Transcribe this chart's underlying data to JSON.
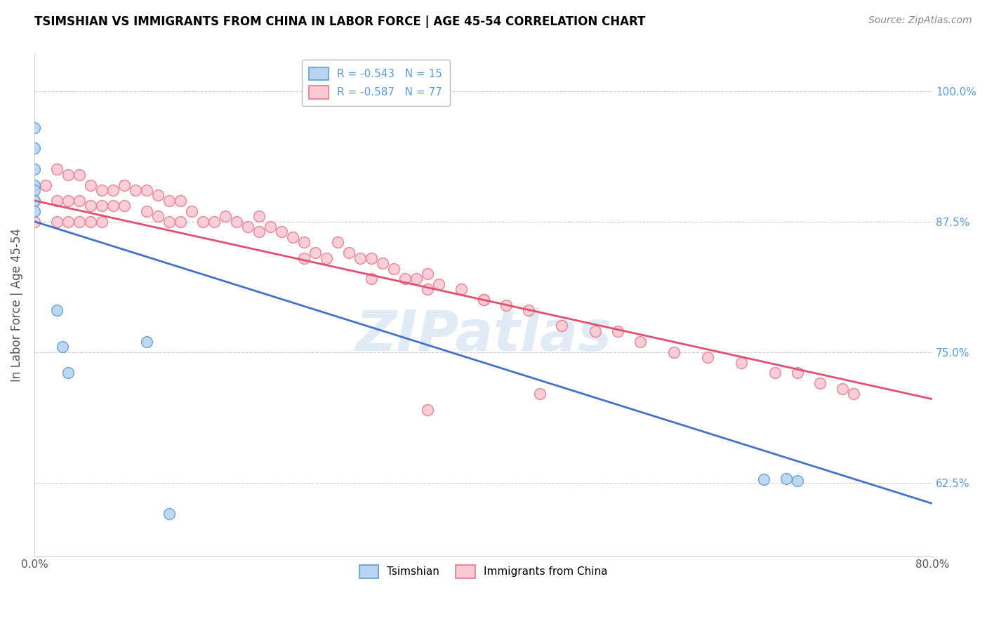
{
  "title": "TSIMSHIAN VS IMMIGRANTS FROM CHINA IN LABOR FORCE | AGE 45-54 CORRELATION CHART",
  "source": "Source: ZipAtlas.com",
  "ylabel": "In Labor Force | Age 45-54",
  "xmin": 0.0,
  "xmax": 0.8,
  "ymin": 0.555,
  "ymax": 1.035,
  "yticks": [
    0.625,
    0.75,
    0.875,
    1.0
  ],
  "ytick_labels": [
    "62.5%",
    "75.0%",
    "87.5%",
    "100.0%"
  ],
  "xticks": [
    0.0,
    0.1,
    0.2,
    0.3,
    0.4,
    0.5,
    0.6,
    0.7,
    0.8
  ],
  "xtick_labels": [
    "0.0%",
    "",
    "",
    "",
    "",
    "",
    "",
    "",
    "80.0%"
  ],
  "blue_fill_color": "#b8d4f0",
  "blue_edge_color": "#5b9bd5",
  "pink_fill_color": "#f9c9d4",
  "pink_edge_color": "#e8788a",
  "blue_line_color": "#4472c4",
  "pink_line_color": "#e05070",
  "legend_blue_label": "R = -0.543   N = 15",
  "legend_pink_label": "R = -0.587   N = 77",
  "tsimshian_legend": "Tsimshian",
  "china_legend": "Immigrants from China",
  "blue_scatter_x": [
    0.0,
    0.0,
    0.0,
    0.0,
    0.0,
    0.0,
    0.0,
    0.02,
    0.025,
    0.03,
    0.65,
    0.67,
    0.68,
    0.1,
    0.12
  ],
  "blue_scatter_y": [
    0.965,
    0.945,
    0.925,
    0.91,
    0.905,
    0.895,
    0.885,
    0.79,
    0.755,
    0.73,
    0.628,
    0.629,
    0.627,
    0.76,
    0.595
  ],
  "pink_scatter_x": [
    0.0,
    0.0,
    0.01,
    0.02,
    0.02,
    0.02,
    0.03,
    0.03,
    0.03,
    0.04,
    0.04,
    0.04,
    0.05,
    0.05,
    0.05,
    0.06,
    0.06,
    0.06,
    0.07,
    0.07,
    0.08,
    0.08,
    0.09,
    0.1,
    0.1,
    0.11,
    0.11,
    0.12,
    0.12,
    0.13,
    0.13,
    0.14,
    0.15,
    0.16,
    0.17,
    0.18,
    0.19,
    0.2,
    0.2,
    0.21,
    0.22,
    0.23,
    0.24,
    0.24,
    0.25,
    0.26,
    0.27,
    0.28,
    0.29,
    0.3,
    0.3,
    0.31,
    0.32,
    0.33,
    0.34,
    0.35,
    0.35,
    0.36,
    0.38,
    0.4,
    0.4,
    0.42,
    0.44,
    0.47,
    0.5,
    0.52,
    0.54,
    0.57,
    0.6,
    0.63,
    0.66,
    0.68,
    0.7,
    0.72,
    0.73,
    0.35,
    0.45
  ],
  "pink_scatter_y": [
    0.895,
    0.875,
    0.91,
    0.925,
    0.895,
    0.875,
    0.92,
    0.895,
    0.875,
    0.92,
    0.895,
    0.875,
    0.91,
    0.89,
    0.875,
    0.905,
    0.89,
    0.875,
    0.905,
    0.89,
    0.91,
    0.89,
    0.905,
    0.905,
    0.885,
    0.9,
    0.88,
    0.895,
    0.875,
    0.895,
    0.875,
    0.885,
    0.875,
    0.875,
    0.88,
    0.875,
    0.87,
    0.88,
    0.865,
    0.87,
    0.865,
    0.86,
    0.855,
    0.84,
    0.845,
    0.84,
    0.855,
    0.845,
    0.84,
    0.84,
    0.82,
    0.835,
    0.83,
    0.82,
    0.82,
    0.825,
    0.81,
    0.815,
    0.81,
    0.8,
    0.8,
    0.795,
    0.79,
    0.775,
    0.77,
    0.77,
    0.76,
    0.75,
    0.745,
    0.74,
    0.73,
    0.73,
    0.72,
    0.715,
    0.71,
    0.695,
    0.71
  ],
  "blue_line_x": [
    0.0,
    0.8
  ],
  "blue_line_y": [
    0.875,
    0.605
  ],
  "pink_line_x": [
    0.0,
    0.8
  ],
  "pink_line_y": [
    0.895,
    0.705
  ],
  "watermark": "ZIPatlas",
  "right_tick_color": "#5b9bd5",
  "grid_color": "#cccccc",
  "bg_color": "#ffffff",
  "title_color": "#000000"
}
